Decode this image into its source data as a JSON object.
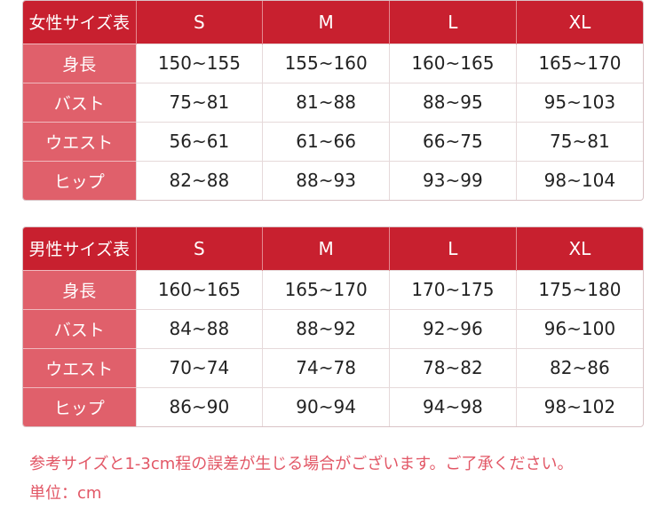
{
  "columns": [
    "S",
    "M",
    "L",
    "XL"
  ],
  "women": {
    "title": "女性サイズ表",
    "rows": [
      {
        "label": "身長",
        "values": [
          "150~155",
          "155~160",
          "160~165",
          "165~170"
        ]
      },
      {
        "label": "バスト",
        "values": [
          "75~81",
          "81~88",
          "88~95",
          "95~103"
        ]
      },
      {
        "label": "ウエスト",
        "values": [
          "56~61",
          "61~66",
          "66~75",
          "75~81"
        ]
      },
      {
        "label": "ヒップ",
        "values": [
          "82~88",
          "88~93",
          "93~99",
          "98~104"
        ]
      }
    ]
  },
  "men": {
    "title": "男性サイズ表",
    "rows": [
      {
        "label": "身長",
        "values": [
          "160~165",
          "165~170",
          "170~175",
          "175~180"
        ]
      },
      {
        "label": "バスト",
        "values": [
          "84~88",
          "88~92",
          "92~96",
          "96~100"
        ]
      },
      {
        "label": "ウエスト",
        "values": [
          "70~74",
          "74~78",
          "78~82",
          "82~86"
        ]
      },
      {
        "label": "ヒップ",
        "values": [
          "86~90",
          "90~94",
          "94~98",
          "98~102"
        ]
      }
    ]
  },
  "notes": {
    "disclaimer": "参考サイズと1-3cm程の誤差が生じる場合がございます。ご了承ください。",
    "unit": "単位：cm"
  },
  "colors": {
    "header": "#c8202f",
    "label": "#e0606b",
    "note": "#e25766"
  }
}
